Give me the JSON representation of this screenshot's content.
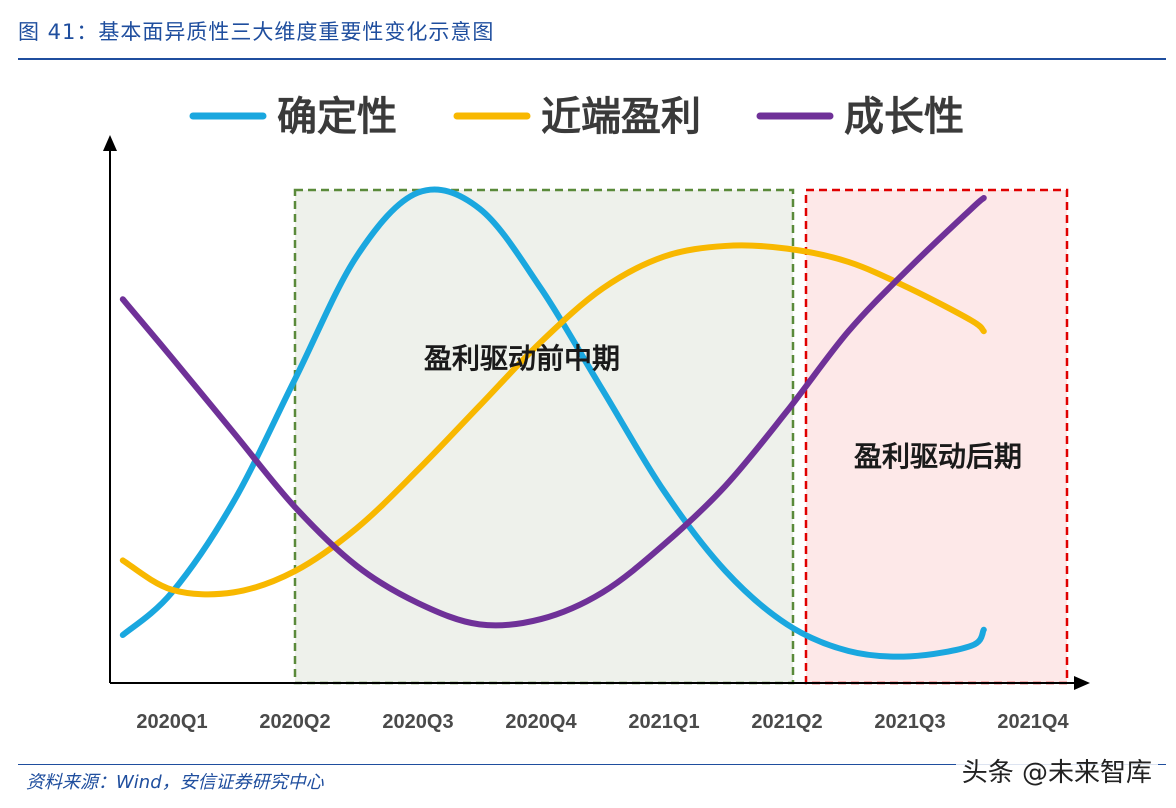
{
  "header": {
    "title": "图 41：基本面异质性三大维度重要性变化示意图"
  },
  "footer": {
    "source": "资料来源：Wind，安信证券研究中心",
    "watermark": "头条 @未来智库"
  },
  "colors": {
    "title_blue": "#1F4E9E",
    "certainty": "#1AA7DF",
    "near_profit": "#F8B800",
    "growth": "#6F3198",
    "green_box": "#5A8A3A",
    "red_box": "#E00000"
  },
  "chart_data": {
    "type": "line",
    "title": "",
    "xlabel": "",
    "ylabel": "",
    "categories": [
      "2020Q1",
      "2020Q2",
      "2020Q3",
      "2020Q4",
      "2021Q1",
      "2021Q2",
      "2021Q3",
      "2021Q4"
    ],
    "legend_position": "top",
    "grid": false,
    "ylim": [
      0,
      100
    ],
    "series": [
      {
        "name": "确定性",
        "color": "#1AA7DF",
        "x": [
          0.6,
          1.0,
          1.5,
          2.0,
          2.5,
          3.0,
          3.5,
          4.0,
          4.5,
          5.0,
          5.5,
          6.0,
          6.5,
          7.0,
          7.5,
          7.6
        ],
        "y": [
          9,
          17,
          34,
          57,
          80,
          92,
          89,
          74,
          55,
          36,
          21,
          11,
          6,
          5,
          7,
          10
        ]
      },
      {
        "name": "近端盈利",
        "color": "#F8B800",
        "x": [
          0.6,
          1.0,
          1.5,
          2.0,
          2.5,
          3.0,
          3.5,
          4.0,
          4.5,
          5.0,
          5.5,
          6.0,
          6.5,
          7.0,
          7.5,
          7.6
        ],
        "y": [
          23,
          17.5,
          17,
          21,
          29,
          40,
          52,
          64,
          74,
          80,
          82,
          81.5,
          79,
          74,
          68,
          66
        ]
      },
      {
        "name": "成长性",
        "color": "#6F3198",
        "x": [
          0.6,
          1.0,
          1.5,
          2.0,
          2.5,
          3.0,
          3.5,
          4.0,
          4.5,
          5.0,
          5.5,
          6.0,
          6.5,
          7.0,
          7.5,
          7.6
        ],
        "y": [
          72,
          61,
          47,
          33,
          22,
          15,
          11,
          12,
          17,
          26,
          37,
          51,
          66,
          78,
          89,
          91
        ]
      }
    ],
    "annotations": [
      {
        "label": "盈利驱动前中期",
        "x_range": [
          2.0,
          6.0
        ],
        "style": "green-dashed"
      },
      {
        "label": "盈利驱动后期",
        "x_range": [
          6.1,
          8.2
        ],
        "style": "red-dashed"
      }
    ]
  }
}
